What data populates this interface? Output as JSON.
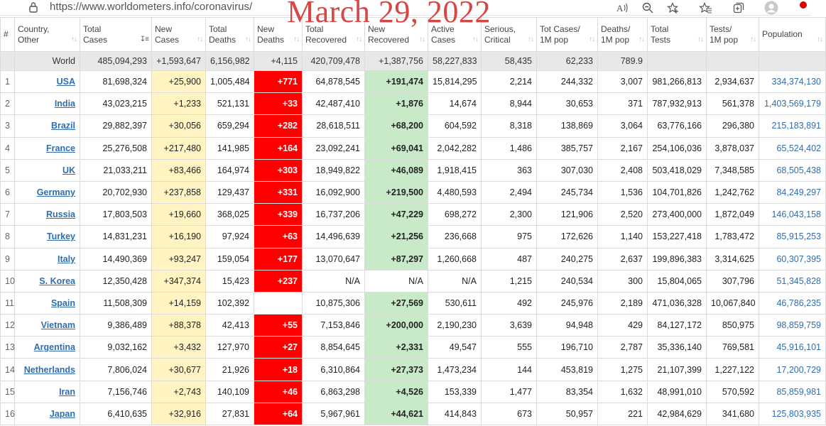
{
  "browser": {
    "url": "https://www.worldometers.info/coronavirus/",
    "icons": [
      "reader-mode-icon",
      "zoom-out-icon",
      "favorite-add-icon",
      "favorites-icon",
      "collections-icon",
      "profile-avatar-icon"
    ]
  },
  "overlay_date": "March 29, 2022",
  "colors": {
    "new_cases_bg": "#fff4c2",
    "new_deaths_bg": "#ff0000",
    "new_recovered_bg": "#c8eac8",
    "link": "#2f6eb0",
    "world_row_bg": "#e8e8e8",
    "overlay_text": "#d84545"
  },
  "table": {
    "headers": [
      {
        "line1": "#",
        "line2": ""
      },
      {
        "line1": "Country,",
        "line2": "Other"
      },
      {
        "line1": "Total",
        "line2": "Cases"
      },
      {
        "line1": "New",
        "line2": "Cases"
      },
      {
        "line1": "Total",
        "line2": "Deaths"
      },
      {
        "line1": "New",
        "line2": "Deaths"
      },
      {
        "line1": "Total",
        "line2": "Recovered"
      },
      {
        "line1": "New",
        "line2": "Recovered"
      },
      {
        "line1": "Active",
        "line2": "Cases"
      },
      {
        "line1": "Serious,",
        "line2": "Critical"
      },
      {
        "line1": "Tot Cases/",
        "line2": "1M pop"
      },
      {
        "line1": "Deaths/",
        "line2": "1M pop"
      },
      {
        "line1": "Total",
        "line2": "Tests"
      },
      {
        "line1": "Tests/",
        "line2": "1M pop"
      },
      {
        "line1": "Population",
        "line2": ""
      }
    ],
    "world": {
      "country": "World",
      "total_cases": "485,094,293",
      "new_cases": "+1,593,647",
      "total_deaths": "6,156,982",
      "new_deaths": "+4,115",
      "total_recovered": "420,709,478",
      "new_recovered": "+1,387,756",
      "active_cases": "58,227,833",
      "serious": "58,435",
      "cases_per_1m": "62,233",
      "deaths_per_1m": "789.9",
      "total_tests": "",
      "tests_per_1m": "",
      "population": ""
    },
    "rows": [
      {
        "rank": "1",
        "country": "USA",
        "total_cases": "81,698,324",
        "new_cases": "+25,900",
        "total_deaths": "1,005,484",
        "new_deaths": "+771",
        "total_recovered": "64,878,545",
        "new_recovered": "+191,474",
        "active_cases": "15,814,295",
        "serious": "2,214",
        "cases_per_1m": "244,332",
        "deaths_per_1m": "3,007",
        "total_tests": "981,266,813",
        "tests_per_1m": "2,934,637",
        "population": "334,374,130"
      },
      {
        "rank": "2",
        "country": "India",
        "total_cases": "43,023,215",
        "new_cases": "+1,233",
        "total_deaths": "521,131",
        "new_deaths": "+33",
        "total_recovered": "42,487,410",
        "new_recovered": "+1,876",
        "active_cases": "14,674",
        "serious": "8,944",
        "cases_per_1m": "30,653",
        "deaths_per_1m": "371",
        "total_tests": "787,932,913",
        "tests_per_1m": "561,378",
        "population": "1,403,569,179"
      },
      {
        "rank": "3",
        "country": "Brazil",
        "total_cases": "29,882,397",
        "new_cases": "+30,056",
        "total_deaths": "659,294",
        "new_deaths": "+282",
        "total_recovered": "28,618,511",
        "new_recovered": "+68,200",
        "active_cases": "604,592",
        "serious": "8,318",
        "cases_per_1m": "138,869",
        "deaths_per_1m": "3,064",
        "total_tests": "63,776,166",
        "tests_per_1m": "296,380",
        "population": "215,183,891"
      },
      {
        "rank": "4",
        "country": "France",
        "total_cases": "25,276,508",
        "new_cases": "+217,480",
        "total_deaths": "141,985",
        "new_deaths": "+164",
        "total_recovered": "23,092,241",
        "new_recovered": "+69,041",
        "active_cases": "2,042,282",
        "serious": "1,486",
        "cases_per_1m": "385,757",
        "deaths_per_1m": "2,167",
        "total_tests": "254,106,036",
        "tests_per_1m": "3,878,037",
        "population": "65,524,402"
      },
      {
        "rank": "5",
        "country": "UK",
        "total_cases": "21,033,211",
        "new_cases": "+83,466",
        "total_deaths": "164,974",
        "new_deaths": "+303",
        "total_recovered": "18,949,822",
        "new_recovered": "+46,089",
        "active_cases": "1,918,415",
        "serious": "363",
        "cases_per_1m": "307,030",
        "deaths_per_1m": "2,408",
        "total_tests": "503,418,029",
        "tests_per_1m": "7,348,585",
        "population": "68,505,438"
      },
      {
        "rank": "6",
        "country": "Germany",
        "total_cases": "20,702,930",
        "new_cases": "+237,858",
        "total_deaths": "129,437",
        "new_deaths": "+331",
        "total_recovered": "16,092,900",
        "new_recovered": "+219,500",
        "active_cases": "4,480,593",
        "serious": "2,494",
        "cases_per_1m": "245,734",
        "deaths_per_1m": "1,536",
        "total_tests": "104,701,826",
        "tests_per_1m": "1,242,762",
        "population": "84,249,297"
      },
      {
        "rank": "7",
        "country": "Russia",
        "total_cases": "17,803,503",
        "new_cases": "+19,660",
        "total_deaths": "368,025",
        "new_deaths": "+339",
        "total_recovered": "16,737,206",
        "new_recovered": "+47,229",
        "active_cases": "698,272",
        "serious": "2,300",
        "cases_per_1m": "121,906",
        "deaths_per_1m": "2,520",
        "total_tests": "273,400,000",
        "tests_per_1m": "1,872,049",
        "population": "146,043,158"
      },
      {
        "rank": "8",
        "country": "Turkey",
        "total_cases": "14,831,231",
        "new_cases": "+16,190",
        "total_deaths": "97,924",
        "new_deaths": "+63",
        "total_recovered": "14,496,639",
        "new_recovered": "+21,256",
        "active_cases": "236,668",
        "serious": "975",
        "cases_per_1m": "172,626",
        "deaths_per_1m": "1,140",
        "total_tests": "153,227,418",
        "tests_per_1m": "1,783,472",
        "population": "85,915,253"
      },
      {
        "rank": "9",
        "country": "Italy",
        "total_cases": "14,490,369",
        "new_cases": "+93,247",
        "total_deaths": "159,054",
        "new_deaths": "+177",
        "total_recovered": "13,070,647",
        "new_recovered": "+87,297",
        "active_cases": "1,260,668",
        "serious": "487",
        "cases_per_1m": "240,275",
        "deaths_per_1m": "2,637",
        "total_tests": "199,896,383",
        "tests_per_1m": "3,314,625",
        "population": "60,307,395"
      },
      {
        "rank": "10",
        "country": "S. Korea",
        "total_cases": "12,350,428",
        "new_cases": "+347,374",
        "total_deaths": "15,423",
        "new_deaths": "+237",
        "total_recovered": "N/A",
        "new_recovered": "N/A",
        "active_cases": "N/A",
        "serious": "1,215",
        "cases_per_1m": "240,534",
        "deaths_per_1m": "300",
        "total_tests": "15,804,065",
        "tests_per_1m": "307,796",
        "population": "51,345,828"
      },
      {
        "rank": "11",
        "country": "Spain",
        "total_cases": "11,508,309",
        "new_cases": "+14,159",
        "total_deaths": "102,392",
        "new_deaths": "",
        "total_recovered": "10,875,306",
        "new_recovered": "+27,569",
        "active_cases": "530,611",
        "serious": "492",
        "cases_per_1m": "245,976",
        "deaths_per_1m": "2,189",
        "total_tests": "471,036,328",
        "tests_per_1m": "10,067,840",
        "population": "46,786,235"
      },
      {
        "rank": "12",
        "country": "Vietnam",
        "total_cases": "9,386,489",
        "new_cases": "+88,378",
        "total_deaths": "42,413",
        "new_deaths": "+55",
        "total_recovered": "7,153,846",
        "new_recovered": "+200,000",
        "active_cases": "2,190,230",
        "serious": "3,639",
        "cases_per_1m": "94,948",
        "deaths_per_1m": "429",
        "total_tests": "84,127,172",
        "tests_per_1m": "850,975",
        "population": "98,859,759"
      },
      {
        "rank": "13",
        "country": "Argentina",
        "total_cases": "9,032,162",
        "new_cases": "+3,432",
        "total_deaths": "127,970",
        "new_deaths": "+27",
        "total_recovered": "8,854,645",
        "new_recovered": "+2,331",
        "active_cases": "49,547",
        "serious": "555",
        "cases_per_1m": "196,710",
        "deaths_per_1m": "2,787",
        "total_tests": "35,336,140",
        "tests_per_1m": "769,581",
        "population": "45,916,101"
      },
      {
        "rank": "14",
        "country": "Netherlands",
        "total_cases": "7,806,024",
        "new_cases": "+30,677",
        "total_deaths": "21,926",
        "new_deaths": "+18",
        "total_recovered": "6,310,864",
        "new_recovered": "+27,373",
        "active_cases": "1,473,234",
        "serious": "144",
        "cases_per_1m": "453,819",
        "deaths_per_1m": "1,275",
        "total_tests": "21,107,399",
        "tests_per_1m": "1,227,122",
        "population": "17,200,729"
      },
      {
        "rank": "15",
        "country": "Iran",
        "total_cases": "7,156,746",
        "new_cases": "+2,743",
        "total_deaths": "140,109",
        "new_deaths": "+46",
        "total_recovered": "6,863,298",
        "new_recovered": "+4,526",
        "active_cases": "153,339",
        "serious": "1,477",
        "cases_per_1m": "83,354",
        "deaths_per_1m": "1,632",
        "total_tests": "48,991,010",
        "tests_per_1m": "570,592",
        "population": "85,859,981"
      },
      {
        "rank": "16",
        "country": "Japan",
        "total_cases": "6,410,635",
        "new_cases": "+32,916",
        "total_deaths": "27,831",
        "new_deaths": "+64",
        "total_recovered": "5,967,961",
        "new_recovered": "+44,621",
        "active_cases": "414,843",
        "serious": "673",
        "cases_per_1m": "50,957",
        "deaths_per_1m": "221",
        "total_tests": "42,984,629",
        "tests_per_1m": "341,680",
        "population": "125,803,935"
      }
    ]
  }
}
